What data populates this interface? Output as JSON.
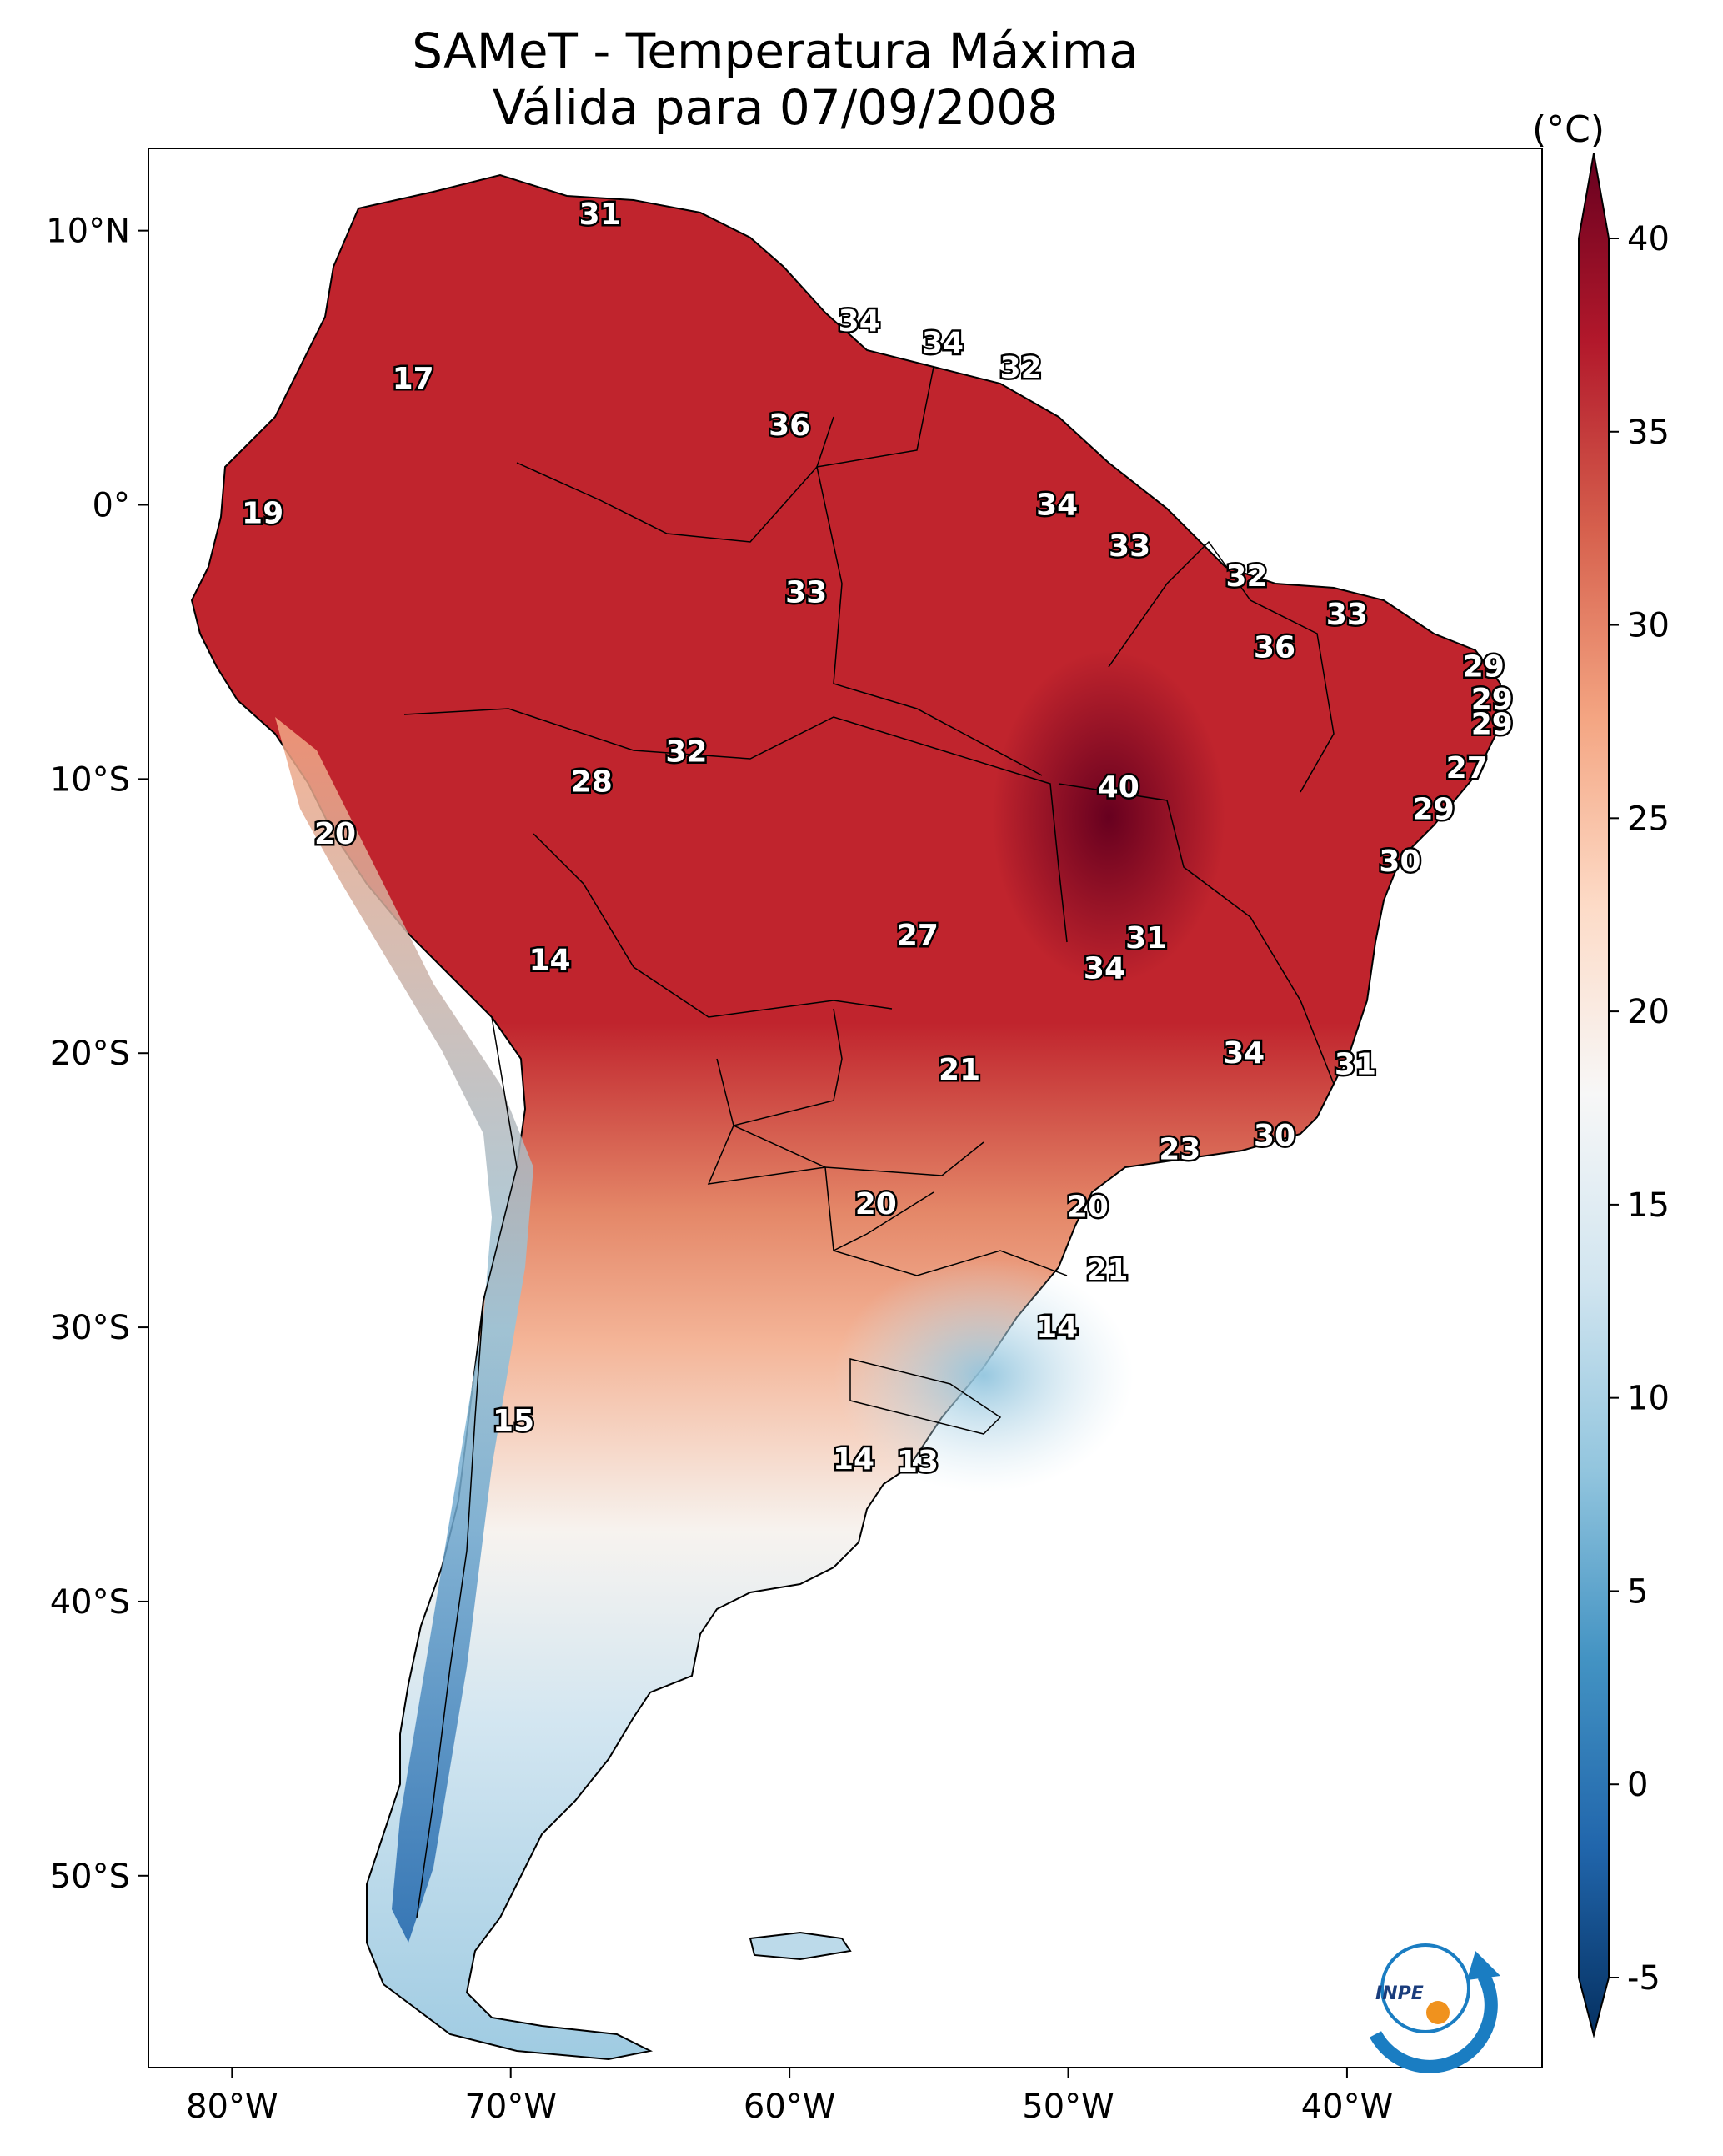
{
  "title": {
    "line1": "SAMeT - Temperatura Máxima",
    "line2": "Válida para 07/09/2008"
  },
  "colorbar": {
    "unit": "(°C)",
    "ticks": [
      "40",
      "35",
      "30",
      "25",
      "20",
      "15",
      "10",
      "5",
      "0",
      "-5"
    ],
    "tick_values": [
      40,
      35,
      30,
      25,
      20,
      15,
      10,
      5,
      0,
      -5
    ],
    "range": [
      -5,
      40
    ],
    "colors": [
      "#053061",
      "#2166ac",
      "#4393c3",
      "#92c5de",
      "#d1e5f0",
      "#f7f7f7",
      "#fddbc7",
      "#f4a582",
      "#d6604d",
      "#b2182b",
      "#67001f"
    ]
  },
  "axes": {
    "lon_ticks": [
      "80°W",
      "70°W",
      "60°W",
      "50°W",
      "40°W"
    ],
    "lon_values": [
      -80,
      -70,
      -60,
      -50,
      -40
    ],
    "lat_ticks": [
      "10°N",
      "0°",
      "10°S",
      "20°S",
      "30°S",
      "40°S",
      "50°S"
    ],
    "lat_values": [
      10,
      0,
      -10,
      -20,
      -30,
      -40,
      -50
    ],
    "lon_range": [
      -83,
      -33
    ],
    "lat_range": [
      -57,
      13
    ]
  },
  "labels": [
    {
      "text": "31",
      "lon": -66.8,
      "lat": 10.6
    },
    {
      "text": "17",
      "lon": -73.5,
      "lat": 4.6
    },
    {
      "text": "34",
      "lon": -57.5,
      "lat": 6.7
    },
    {
      "text": "34",
      "lon": -54.5,
      "lat": 5.9
    },
    {
      "text": "32",
      "lon": -51.7,
      "lat": 5.0
    },
    {
      "text": "36",
      "lon": -60.0,
      "lat": 2.9
    },
    {
      "text": "19",
      "lon": -78.9,
      "lat": -0.3
    },
    {
      "text": "34",
      "lon": -50.4,
      "lat": -0.0
    },
    {
      "text": "33",
      "lon": -47.8,
      "lat": -1.5
    },
    {
      "text": "32",
      "lon": -43.6,
      "lat": -2.6
    },
    {
      "text": "33",
      "lon": -59.4,
      "lat": -3.2
    },
    {
      "text": "33",
      "lon": -40.0,
      "lat": -4.0
    },
    {
      "text": "36",
      "lon": -42.6,
      "lat": -5.2
    },
    {
      "text": "29",
      "lon": -35.1,
      "lat": -5.9
    },
    {
      "text": "29",
      "lon": -34.8,
      "lat": -7.1
    },
    {
      "text": "29",
      "lon": -34.8,
      "lat": -8.0
    },
    {
      "text": "32",
      "lon": -63.7,
      "lat": -9.0
    },
    {
      "text": "28",
      "lon": -67.1,
      "lat": -10.1
    },
    {
      "text": "40",
      "lon": -48.2,
      "lat": -10.3
    },
    {
      "text": "27",
      "lon": -35.7,
      "lat": -9.6
    },
    {
      "text": "29",
      "lon": -36.9,
      "lat": -11.1
    },
    {
      "text": "20",
      "lon": -76.3,
      "lat": -12.0
    },
    {
      "text": "30",
      "lon": -38.1,
      "lat": -13.0
    },
    {
      "text": "27",
      "lon": -55.4,
      "lat": -15.7
    },
    {
      "text": "31",
      "lon": -47.2,
      "lat": -15.8
    },
    {
      "text": "14",
      "lon": -68.6,
      "lat": -16.6
    },
    {
      "text": "34",
      "lon": -48.7,
      "lat": -16.9
    },
    {
      "text": "34",
      "lon": -43.7,
      "lat": -20.0
    },
    {
      "text": "21",
      "lon": -53.9,
      "lat": -20.6
    },
    {
      "text": "31",
      "lon": -39.7,
      "lat": -20.4
    },
    {
      "text": "30",
      "lon": -42.6,
      "lat": -23.0
    },
    {
      "text": "23",
      "lon": -46.0,
      "lat": -23.5
    },
    {
      "text": "20",
      "lon": -56.9,
      "lat": -25.5
    },
    {
      "text": "20",
      "lon": -49.3,
      "lat": -25.6
    },
    {
      "text": "21",
      "lon": -48.6,
      "lat": -27.9
    },
    {
      "text": "14",
      "lon": -50.4,
      "lat": -30.0
    },
    {
      "text": "15",
      "lon": -69.9,
      "lat": -33.4
    },
    {
      "text": "14",
      "lon": -57.7,
      "lat": -34.8
    },
    {
      "text": "13",
      "lon": -55.4,
      "lat": -34.9
    }
  ]
}
